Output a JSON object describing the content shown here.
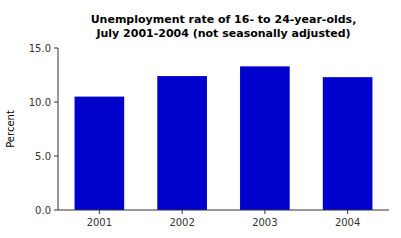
{
  "chart_data": {
    "type": "bar",
    "title": "Unemployment rate of 16- to 24-year-olds,\nJuly 2001-2004 (not seasonally adjusted)",
    "ylabel": "Percent",
    "categories": [
      "2001",
      "2002",
      "2003",
      "2004"
    ],
    "values": [
      10.5,
      12.4,
      13.3,
      12.3
    ],
    "color": "#0000cc",
    "ylim": [
      0,
      15.0
    ],
    "yticks": [
      {
        "value": 0.0,
        "label": "0.0"
      },
      {
        "value": 5.0,
        "label": "5.0"
      },
      {
        "value": 10.0,
        "label": "10.0"
      },
      {
        "value": 15.0,
        "label": "15.0"
      }
    ],
    "grid": false
  }
}
